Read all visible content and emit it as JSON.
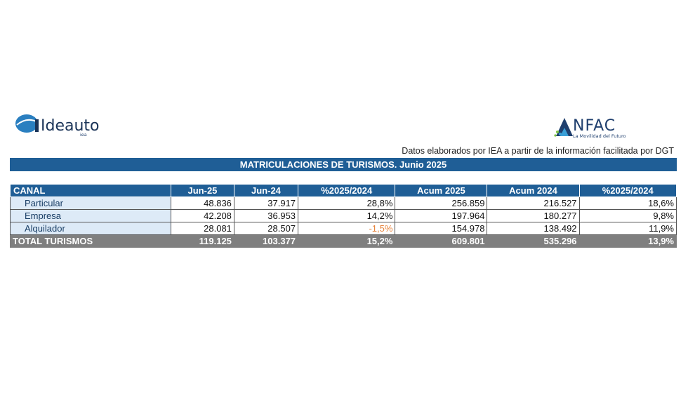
{
  "logos": {
    "left": "Ideauto",
    "left_sub": "iea",
    "right": "NFAC",
    "right_tagline": "La Movilidad del Futuro"
  },
  "source_note": "Datos elaborados por IEA a partir de la información facilitada por DGT",
  "title": "MATRICULACIONES DE TURISMOS. Junio 2025",
  "table": {
    "headers": [
      "CANAL",
      "Jun-25",
      "Jun-24",
      "%2025/2024",
      "Acum 2025",
      "Acum 2024",
      "%2025/2024"
    ],
    "rows": [
      [
        "Particular",
        "48.836",
        "37.917",
        "28,8%",
        "256.859",
        "216.527",
        "18,6%"
      ],
      [
        "Empresa",
        "42.208",
        "36.953",
        "14,2%",
        "197.964",
        "180.277",
        "9,8%"
      ],
      [
        "Alquilador",
        "28.081",
        "28.507",
        "-1,5%",
        "154.978",
        "138.492",
        "11,9%"
      ]
    ],
    "total": [
      "TOTAL TURISMOS",
      "119.125",
      "103.377",
      "15,2%",
      "609.801",
      "535.296",
      "13,9%"
    ]
  },
  "colors": {
    "header_bg": "#1f5e96",
    "row_label_bg": "#ddeaf7",
    "total_bg": "#7f7f7f",
    "negative": "#e8843c"
  }
}
